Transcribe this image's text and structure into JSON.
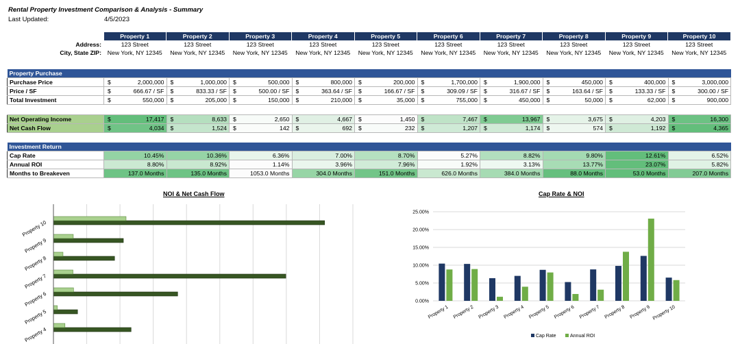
{
  "header": {
    "title": "Rental Property Investment Comparison & Analysis - Summary",
    "last_updated_label": "Last Updated:",
    "last_updated_value": "4/5/2023"
  },
  "properties": {
    "names": [
      "Property 1",
      "Property 2",
      "Property 3",
      "Property 4",
      "Property 5",
      "Property 6",
      "Property 7",
      "Property 8",
      "Property 9",
      "Property 10"
    ],
    "address_label": "Address:",
    "addresses": [
      "123 Street",
      "123 Street",
      "123 Street",
      "123 Street",
      "123 Street",
      "123 Street",
      "123 Street",
      "123 Street",
      "123 Street",
      "123 Street"
    ],
    "city_label": "City, State ZIP:",
    "cities": [
      "New York, NY 12345",
      "New York, NY 12345",
      "New York, NY 12345",
      "New York, NY 12345",
      "New York, NY 12345",
      "New York, NY 12345",
      "New York, NY 12345",
      "New York, NY 12345",
      "New York, NY 12345",
      "New York, NY 12345"
    ]
  },
  "purchase": {
    "section_title": "Property Purchase",
    "rows": [
      {
        "label": "Purchase Price",
        "currency": "$",
        "values": [
          "2,000,000",
          "1,000,000",
          "500,000",
          "800,000",
          "200,000",
          "1,700,000",
          "1,900,000",
          "450,000",
          "400,000",
          "3,000,000"
        ]
      },
      {
        "label": "Price / SF",
        "currency": "$",
        "values": [
          "666.67 / SF",
          "833.33 / SF",
          "500.00 / SF",
          "363.64 / SF",
          "166.67 / SF",
          "309.09 / SF",
          "316.67 / SF",
          "163.64 / SF",
          "133.33 / SF",
          "300.00 / SF"
        ]
      },
      {
        "label": "Total Investment",
        "currency": "$",
        "values": [
          "550,000",
          "205,000",
          "150,000",
          "210,000",
          "35,000",
          "755,000",
          "450,000",
          "50,000",
          "62,000",
          "900,000"
        ]
      }
    ]
  },
  "income": {
    "rows": [
      {
        "label": "Net Operating Income",
        "currency": "$",
        "values": [
          "17,417",
          "8,633",
          "2,650",
          "4,667",
          "1,450",
          "7,467",
          "13,967",
          "3,675",
          "4,203",
          "16,300"
        ],
        "shades": [
          "#63be7b",
          "#b5dfbf",
          "#f7fbf8",
          "#e0f0e4",
          "#fcfcfc",
          "#bfe3c7",
          "#7fcb92",
          "#e5f3e8",
          "#dff0e3",
          "#6cc283"
        ]
      },
      {
        "label": "Net Cash Flow",
        "currency": "$",
        "values": [
          "4,034",
          "1,524",
          "142",
          "692",
          "232",
          "1,207",
          "1,174",
          "574",
          "1,192",
          "4,365"
        ],
        "shades": [
          "#70c386",
          "#c4e5cc",
          "#fafcfa",
          "#eaf5ec",
          "#f8fbf9",
          "#cfeaD6",
          "#d0ead6",
          "#eef7f0",
          "#cfe9d5",
          "#63be7b"
        ]
      }
    ]
  },
  "returns": {
    "section_title": "Investment Return",
    "rows": [
      {
        "label": "Cap Rate",
        "values": [
          "10.45%",
          "10.36%",
          "6.36%",
          "7.00%",
          "8.70%",
          "5.27%",
          "8.82%",
          "9.80%",
          "12.61%",
          "6.52%"
        ],
        "shades": [
          "#94d3a4",
          "#96d4a6",
          "#e8f5eb",
          "#d9eedf",
          "#b5e0c0",
          "#fcfcfc",
          "#b2dfbe",
          "#a4dab2",
          "#63be7b",
          "#e4f3e8"
        ]
      },
      {
        "label": "Annual ROI",
        "values": [
          "8.80%",
          "8.92%",
          "1.14%",
          "3.96%",
          "7.96%",
          "1.92%",
          "3.13%",
          "13.77%",
          "23.07%",
          "5.82%"
        ],
        "shades": [
          "#cbe9d2",
          "#c9e8d0",
          "#fcfcfc",
          "#eaf6ed",
          "#d0ebd7",
          "#f8fbf9",
          "#eef8f1",
          "#a8dcb5",
          "#63be7b",
          "#e0f2e5"
        ]
      },
      {
        "label": "Months to Breakeven",
        "values": [
          "137.0 Months",
          "135.0 Months",
          "1053.0 Months",
          "304.0 Months",
          "151.0 Months",
          "626.0 Months",
          "384.0 Months",
          "88.0 Months",
          "53.0 Months",
          "207.0 Months"
        ],
        "shades": [
          "#6ec385",
          "#6ec385",
          "#fcfcfc",
          "#97d5a6",
          "#72c588",
          "#c9e8d0",
          "#a6dbb3",
          "#66bf7e",
          "#63be7b",
          "#82cb95"
        ]
      }
    ]
  },
  "chart_data": [
    {
      "type": "bar",
      "orientation": "horizontal",
      "title": "NOI & Net Cash Flow",
      "categories": [
        "Property 10",
        "Property 9",
        "Property 8",
        "Property 7",
        "Property 6",
        "Property 5",
        "Property 4"
      ],
      "series": [
        {
          "name": "NOI",
          "values": [
            16300,
            4203,
            3675,
            13967,
            7467,
            1450,
            4667
          ],
          "color": "#375623"
        },
        {
          "name": "Net Cash Flow",
          "values": [
            4365,
            1192,
            574,
            1174,
            1207,
            232,
            692
          ],
          "color": "#a9d08e"
        }
      ],
      "xlim": [
        0,
        18000
      ],
      "grid": true
    },
    {
      "type": "bar",
      "title": "Cap Rate & NOI",
      "categories": [
        "Property 1",
        "Property 2",
        "Property 3",
        "Property 4",
        "Property 5",
        "Property 6",
        "Property 7",
        "Property 8",
        "Property 9",
        "Property 10"
      ],
      "series": [
        {
          "name": "Cap Rate",
          "values": [
            10.45,
            10.36,
            6.36,
            7.0,
            8.7,
            5.27,
            8.82,
            9.8,
            12.61,
            6.52
          ],
          "color": "#1f3864"
        },
        {
          "name": "Annual ROI",
          "values": [
            8.8,
            8.92,
            1.14,
            3.96,
            7.96,
            1.92,
            3.13,
            13.77,
            23.07,
            5.82
          ],
          "color": "#70ad47"
        }
      ],
      "yticks": [
        "0.00%",
        "5.00%",
        "10.00%",
        "15.00%",
        "20.00%",
        "25.00%"
      ],
      "ylim": [
        0,
        25
      ],
      "legend": "bottom"
    }
  ]
}
